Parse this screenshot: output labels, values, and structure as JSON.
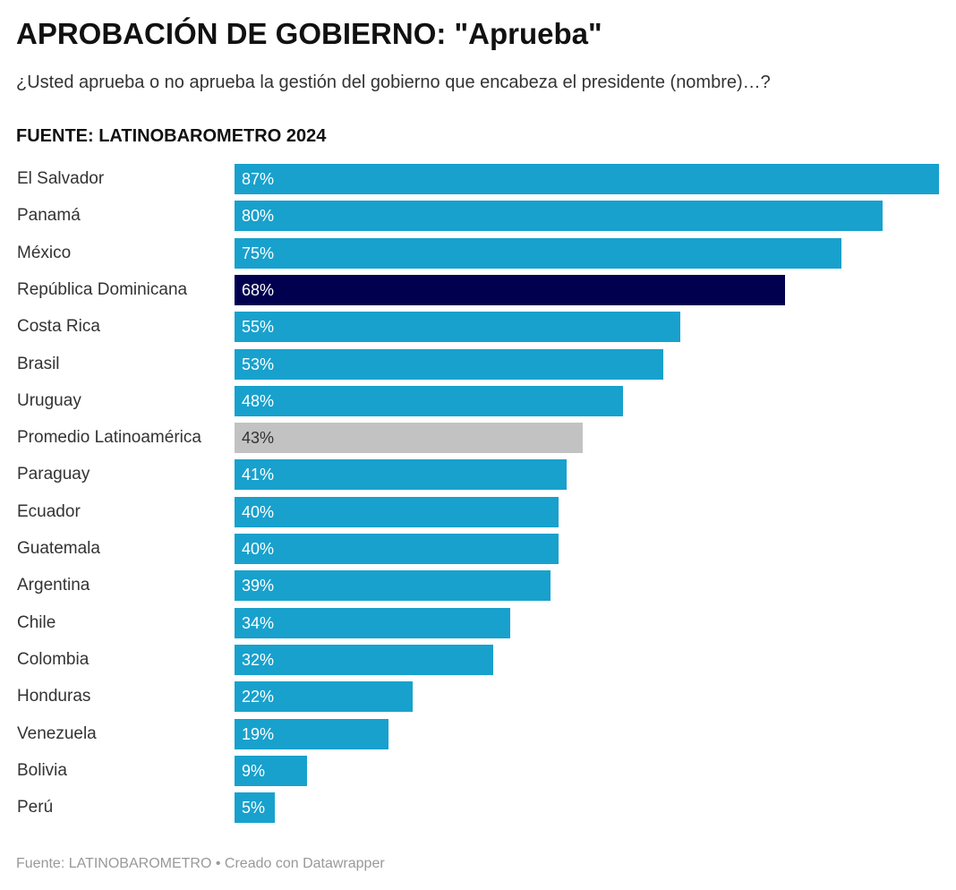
{
  "title": "APROBACIÓN DE GOBIERNO: \"Aprueba\"",
  "subtitle": "¿Usted aprueba o no aprueba la gestión del gobierno que encabeza el presidente (nombre)…?",
  "source_heading": "FUENTE: LATINOBAROMETRO 2024",
  "footer": "Fuente: LATINOBAROMETRO • Creado con Datawrapper",
  "colors": {
    "default": "#18a1cd",
    "highlight": "#01004f",
    "average": "#c2c2c2"
  },
  "chart_data": {
    "type": "bar",
    "orientation": "horizontal",
    "title": "APROBACIÓN DE GOBIERNO: \"Aprueba\"",
    "xlim": [
      0,
      87
    ],
    "grid": false,
    "categories": [
      "El Salvador",
      "Panamá",
      "México",
      "República Dominicana",
      "Costa Rica",
      "Brasil",
      "Uruguay",
      "Promedio Latinoamérica",
      "Paraguay",
      "Ecuador",
      "Guatemala",
      "Argentina",
      "Chile",
      "Colombia",
      "Honduras",
      "Venezuela",
      "Bolivia",
      "Perú"
    ],
    "values": [
      87,
      80,
      75,
      68,
      55,
      53,
      48,
      43,
      41,
      40,
      40,
      39,
      34,
      32,
      22,
      19,
      9,
      5
    ],
    "labels": [
      "87%",
      "80%",
      "75%",
      "68%",
      "55%",
      "53%",
      "48%",
      "43%",
      "41%",
      "40%",
      "40%",
      "39%",
      "34%",
      "32%",
      "22%",
      "19%",
      "9%",
      "5%"
    ],
    "highlight": "República Dominicana",
    "average": "Promedio Latinoamérica"
  }
}
